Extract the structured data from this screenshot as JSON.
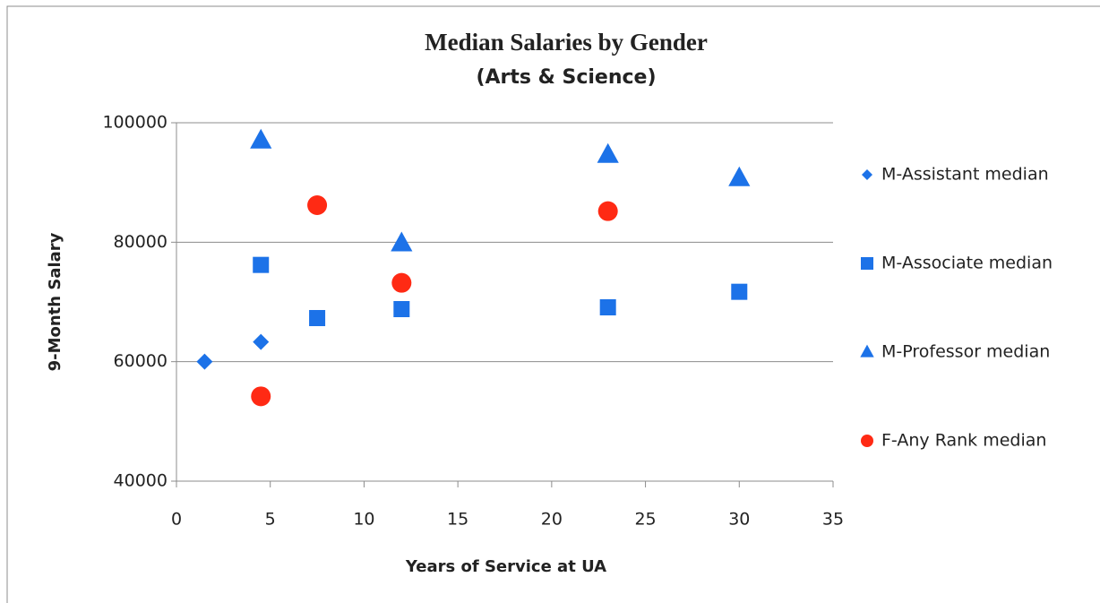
{
  "chart_data": {
    "type": "scatter",
    "title": "Median Salaries by Gender",
    "subtitle": "(Arts & Science)",
    "x_label": "Years of Service at UA",
    "y_label": "9-Month Salary",
    "xlim": [
      0,
      35
    ],
    "xticks": [
      0,
      5,
      10,
      15,
      20,
      25,
      30,
      35
    ],
    "ylim": [
      40000,
      100000
    ],
    "yticks": [
      40000,
      60000,
      80000,
      100000
    ],
    "grid": true,
    "legend": "right",
    "series": [
      {
        "name": "M-Assistant median",
        "color": "#1c72e8",
        "marker": "diamond",
        "x": [
          1.5,
          4.5
        ],
        "values": [
          60000,
          63300
        ]
      },
      {
        "name": "M-Associate median",
        "color": "#1c72e8",
        "marker": "square",
        "x": [
          4.5,
          7.5,
          12,
          23,
          30
        ],
        "values": [
          76200,
          67300,
          68800,
          69100,
          71700
        ]
      },
      {
        "name": "M-Professor median",
        "color": "#1c72e8",
        "marker": "triangle",
        "x": [
          4.5,
          12,
          23,
          30
        ],
        "values": [
          97000,
          79800,
          94600,
          90700
        ]
      },
      {
        "name": "F-Any Rank median",
        "color": "#ff2a14",
        "marker": "circle",
        "x": [
          4.5,
          7.5,
          12,
          23
        ],
        "values": [
          54200,
          86200,
          73200,
          85200
        ]
      }
    ]
  }
}
